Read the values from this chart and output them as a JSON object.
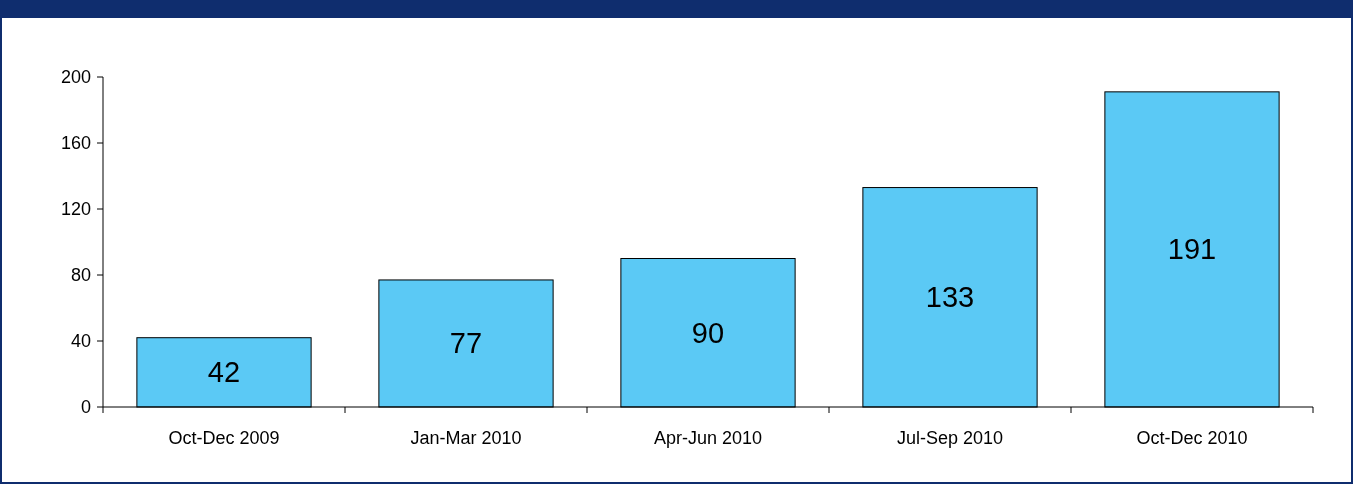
{
  "chart_data": {
    "type": "bar",
    "categories": [
      "Oct-Dec 2009",
      "Jan-Mar 2010",
      "Apr-Jun 2010",
      "Jul-Sep 2010",
      "Oct-Dec 2010"
    ],
    "values": [
      42,
      77,
      90,
      133,
      191
    ],
    "color": "#5bc9f5",
    "ylim": [
      0,
      200
    ],
    "yticks": [
      0,
      40,
      80,
      120,
      160,
      200
    ],
    "data_labels": true
  }
}
